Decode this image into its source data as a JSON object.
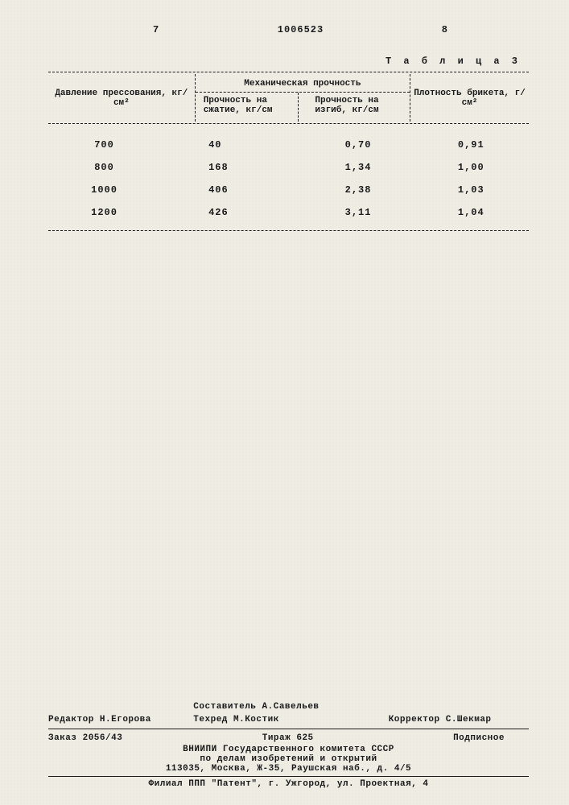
{
  "doc": {
    "page_left": "7",
    "doc_number": "1006523",
    "page_right": "8"
  },
  "table": {
    "caption": "Т а б л и ц а  3",
    "headers": {
      "col1": "Давление прессования, кг/см²",
      "col2_top": "Механическая прочность",
      "col2a": "Прочность на сжатие, кг/см",
      "col2b": "Прочность на изгиб, кг/см",
      "col3": "Плотность брикета, г/см²"
    },
    "rows": [
      {
        "pressure": "700",
        "compress": "40",
        "bend": "0,70",
        "density": "0,91"
      },
      {
        "pressure": "800",
        "compress": "168",
        "bend": "1,34",
        "density": "1,00"
      },
      {
        "pressure": "1000",
        "compress": "406",
        "bend": "2,38",
        "density": "1,03"
      },
      {
        "pressure": "1200",
        "compress": "426",
        "bend": "3,11",
        "density": "1,04"
      }
    ]
  },
  "colophon": {
    "compiler": "Составитель А.Савельев",
    "editor": "Редактор Н.Егорова",
    "techred": "Техред М.Костик",
    "corrector": "Корректор С.Шекмар",
    "order": "Заказ 2056/43",
    "print_run": "Тираж 625",
    "subscription": "Подписное",
    "org1": "ВНИИПИ Государственного комитета СССР",
    "org2": "по делам изобретений и открытий",
    "addr1": "113035, Москва, Ж-35, Раушская наб., д. 4/5",
    "branch": "Филиал ППП \"Патент\", г. Ужгород, ул. Проектная, 4"
  }
}
